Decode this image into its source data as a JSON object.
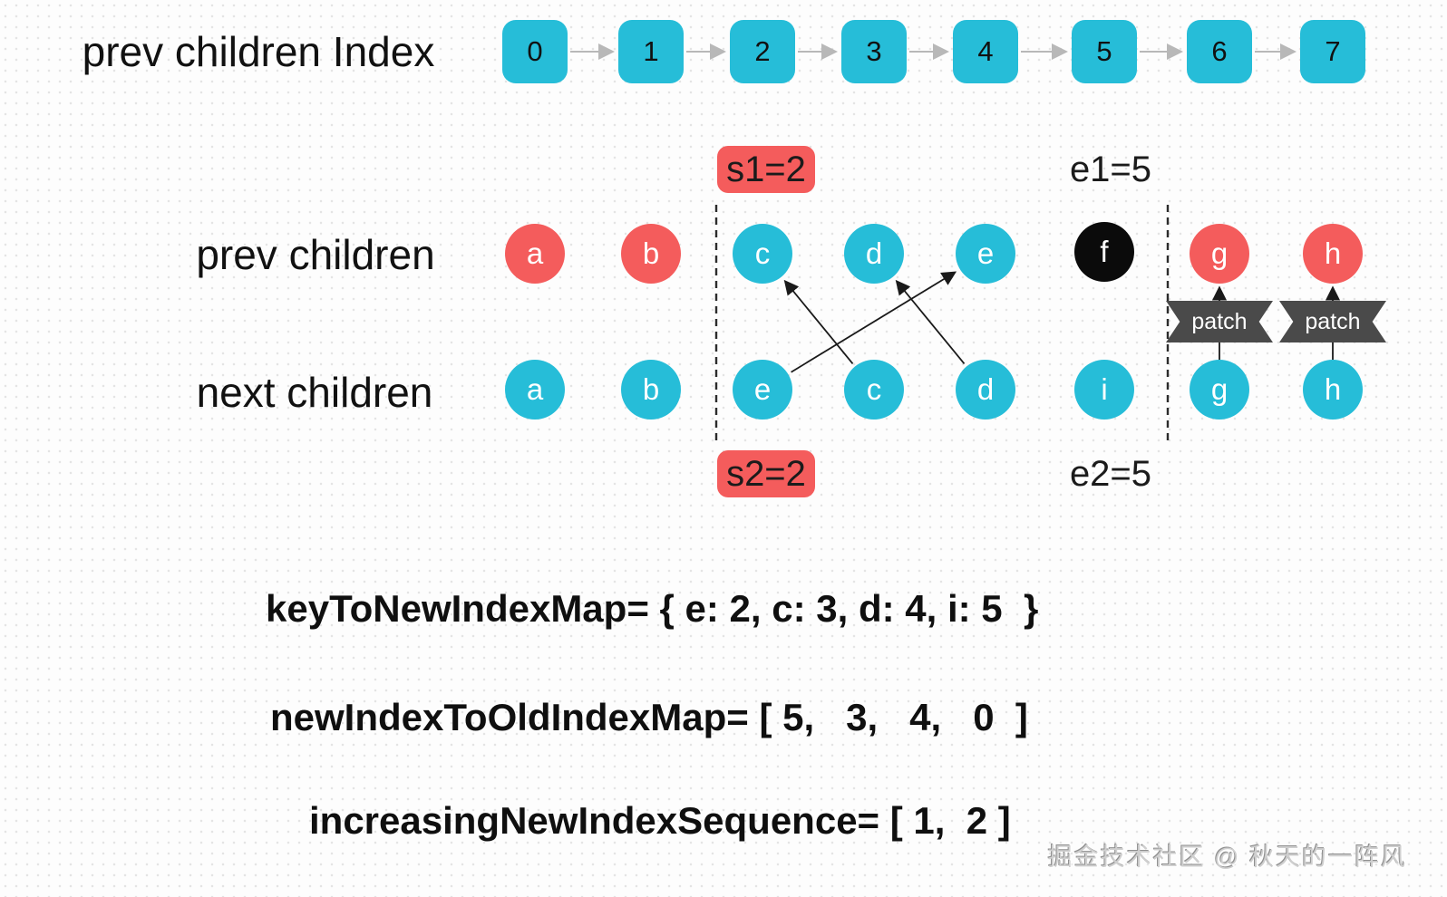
{
  "colors": {
    "cyan": "#26bdd8",
    "red": "#f45c5c",
    "black": "#0b0b0b",
    "banner_gray": "#4a4a4a",
    "chain_arrow_gray": "#b8b8b8",
    "map_arrow_black": "#1a1a1a"
  },
  "labels": {
    "prev_index_row": "prev children Index",
    "prev_row": "prev children",
    "next_row": "next children",
    "s1": "s1=2",
    "e1": "e1=5",
    "s2": "s2=2",
    "e2": "e2=5",
    "patch_left": "patch",
    "patch_right": "patch"
  },
  "index_row": [
    "0",
    "1",
    "2",
    "3",
    "4",
    "5",
    "6",
    "7"
  ],
  "prev_children": [
    {
      "key": "a",
      "color": "red"
    },
    {
      "key": "b",
      "color": "red"
    },
    {
      "key": "c",
      "color": "cyan"
    },
    {
      "key": "d",
      "color": "cyan"
    },
    {
      "key": "e",
      "color": "cyan"
    },
    {
      "key": "f",
      "color": "black"
    },
    {
      "key": "g",
      "color": "red"
    },
    {
      "key": "h",
      "color": "red"
    }
  ],
  "next_children": [
    {
      "key": "a",
      "color": "cyan"
    },
    {
      "key": "b",
      "color": "cyan"
    },
    {
      "key": "e",
      "color": "cyan"
    },
    {
      "key": "c",
      "color": "cyan"
    },
    {
      "key": "d",
      "color": "cyan"
    },
    {
      "key": "i",
      "color": "cyan"
    },
    {
      "key": "g",
      "color": "cyan"
    },
    {
      "key": "h",
      "color": "cyan"
    }
  ],
  "mappings": {
    "crossing_arrows": [
      {
        "key": "e",
        "from_next_col": 2,
        "to_prev_col": 4
      },
      {
        "key": "c",
        "from_next_col": 3,
        "to_prev_col": 2
      },
      {
        "key": "d",
        "from_next_col": 4,
        "to_prev_col": 3
      }
    ],
    "patch_cols": [
      6,
      7
    ]
  },
  "formulas": {
    "key_to_new_index_map": "keyToNewIndexMap= { e: 2, c: 3, d: 4, i: 5  }",
    "new_index_to_old_index_map": "newIndexToOldIndexMap= [ 5,   3,   4,   0  ]",
    "increasing_new_index_sequence": "increasingNewIndexSequence= [ 1,  2 ]"
  },
  "watermark": "掘金技术社区 @ 秋天的一阵风"
}
